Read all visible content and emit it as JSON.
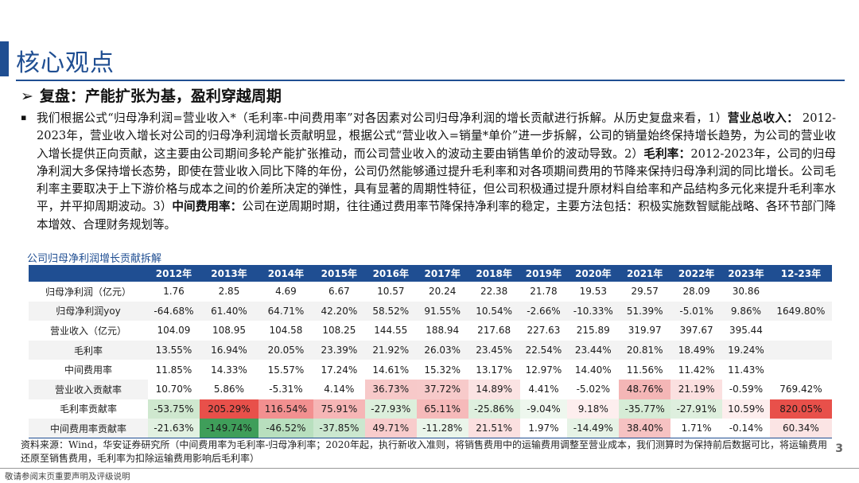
{
  "page": {
    "title": "核心观点",
    "subheading": "复盘：产能扩张为基，盈利穿越周期",
    "page_number": "3",
    "disclaimer": "敬请参阅末页重要声明及评级说明",
    "accent_color": "#1f4e92"
  },
  "body": {
    "p1": "我们根据公式“归母净利润=营业收入*（毛利率-中间费用率”对各因素对公司归母净利润的增长贡献进行拆解。从历史复盘来看，1）",
    "b1": "营业总收入：",
    "p2": " 2012-2023年，营业收入增长对公司的归母净利润增长贡献明显，根据公式“营业收入=销量*单价”进一步拆解，公司的销量始终保持增长趋势，为公司的营业收入增长提供正向贡献，这主要由公司期间多轮产能扩张推动，而公司营业收入的波动主要由销售单价的波动导致。2）",
    "b2": "毛利率：",
    "p3": "2012-2023年，公司的归母净利润大多保持增长态势，即使在营业收入同比下降的年份，公司仍然能够通过提升毛利率和对各项期间费用的节降来保持归母净利润的同比增长。公司毛利率主要取决于上下游价格与成本之间的价差所决定的弹性，具有显著的周期性特征，但公司积极通过提升原材料自给率和产品结构多元化来提升毛利率水平，并平抑周期波动。3）",
    "b3": "中间费用率：",
    "p4": "公司在逆周期时期，往往通过费用率节降保持净利率的稳定，主要方法包括：积极实施数智赋能战略、各环节部门降本增效、合理财务规划等。"
  },
  "table": {
    "caption": "公司归母净利润增长贡献拆解",
    "columns": [
      "",
      "2012年",
      "2013年",
      "2014年",
      "2015年",
      "2016年",
      "2017年",
      "2018年",
      "2019年",
      "2020年",
      "2021年",
      "2022年",
      "2023年",
      "12-23年"
    ],
    "rows": [
      {
        "label": "归母净利润（亿元）",
        "cells": [
          "1.76",
          "2.85",
          "4.69",
          "6.67",
          "10.57",
          "20.24",
          "22.38",
          "21.78",
          "19.53",
          "29.57",
          "28.09",
          "30.86",
          ""
        ]
      },
      {
        "label": "归母净利润yoy",
        "cells": [
          "-64.68%",
          "61.40%",
          "64.71%",
          "42.20%",
          "58.52%",
          "91.55%",
          "10.54%",
          "-2.66%",
          "-10.33%",
          "51.39%",
          "-5.01%",
          "9.86%",
          "1649.80%"
        ]
      },
      {
        "label": "营业收入（亿元）",
        "cells": [
          "104.09",
          "108.95",
          "104.58",
          "108.25",
          "144.55",
          "188.94",
          "217.68",
          "227.63",
          "215.89",
          "319.97",
          "397.67",
          "395.44",
          ""
        ]
      },
      {
        "label": "毛利率",
        "cells": [
          "13.55%",
          "16.94%",
          "20.05%",
          "23.39%",
          "21.92%",
          "26.03%",
          "23.45%",
          "22.54%",
          "23.44%",
          "20.81%",
          "18.49%",
          "19.24%",
          ""
        ]
      },
      {
        "label": "中间费用率",
        "cells": [
          "11.85%",
          "14.33%",
          "15.57%",
          "17.24%",
          "14.61%",
          "15.32%",
          "13.17%",
          "12.97%",
          "14.40%",
          "11.56%",
          "11.42%",
          "11.43%",
          ""
        ]
      },
      {
        "label": "营业收入贡献率",
        "cells": [
          "10.70%",
          "5.86%",
          "-5.31%",
          "4.14%",
          "36.73%",
          "37.72%",
          "14.89%",
          "4.41%",
          "-5.02%",
          "48.76%",
          "21.19%",
          "-0.59%",
          "769.42%"
        ]
      },
      {
        "label": "毛利率贡献率",
        "cells": [
          "-53.75%",
          "205.29%",
          "116.54%",
          "75.91%",
          "-27.93%",
          "65.11%",
          "-25.86%",
          "-9.04%",
          "9.18%",
          "-35.77%",
          "-27.91%",
          "10.59%",
          "820.05%"
        ]
      },
      {
        "label": "中间费用率贡献率",
        "cells": [
          "-21.63%",
          "-149.74%",
          "-46.52%",
          "-37.85%",
          "49.71%",
          "-11.28%",
          "21.51%",
          "1.97%",
          "-14.49%",
          "38.40%",
          "1.71%",
          "-0.14%",
          "60.34%"
        ]
      }
    ],
    "heat": {
      "5": [
        "#ffffff",
        "#ffffff",
        "#ffffff",
        "#ffffff",
        "#f7c9c9",
        "#f7caca",
        "#fbe3e3",
        "#ffffff",
        "#ffffff",
        "#f4b6b6",
        "#fbe0e0",
        "#ffffff",
        "#ffffff"
      ],
      "6": [
        "#cfe8cf",
        "#e8504a",
        "#f29090",
        "#f6b6b6",
        "#dcefdc",
        "#f6baba",
        "#deefde",
        "#eef7ee",
        "#fdeeee",
        "#d6ecd6",
        "#deefde",
        "#fdeeee",
        "#e8504a"
      ],
      "7": [
        "#e1f1e1",
        "#3f9e5a",
        "#b8dfbe",
        "#cbe7cf",
        "#f8cccc",
        "#eaf5ea",
        "#fbe0e0",
        "#ffffff",
        "#e6f3e6",
        "#f6c2c2",
        "#ffffff",
        "#ffffff",
        "#fbe4e4"
      ]
    }
  },
  "source": {
    "text": "资料来源：Wind，华安证券研究所（中间费用率为毛利率-归母净利率；2020年起，执行新收入准则，将销售费用中的运输费用调整至营业成本，我们测算时为保持前后数据可比，将运输费用还原至销售费用，毛利率为扣除运输费用影响后毛利率）"
  }
}
